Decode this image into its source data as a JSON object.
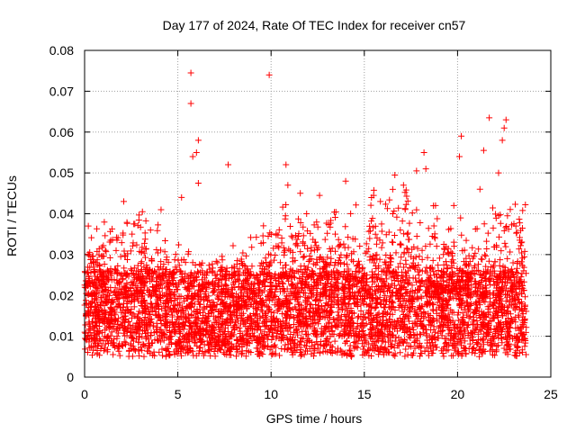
{
  "chart_data": {
    "type": "scatter",
    "title": "Day 177 of 2024, Rate Of TEC Index for receiver cn57",
    "xlabel": "GPS time / hours",
    "ylabel": "ROTI / TECUs",
    "xlim": [
      0,
      25
    ],
    "ylim": [
      0,
      0.08
    ],
    "xticks": [
      0,
      5,
      10,
      15,
      20,
      25
    ],
    "yticks": [
      0,
      0.01,
      0.02,
      0.03,
      0.04,
      0.05,
      0.06,
      0.07,
      0.08
    ],
    "ytick_labels": [
      "0",
      "0.01",
      "0.02",
      "0.03",
      "0.04",
      "0.05",
      "0.06",
      "0.07",
      "0.08"
    ],
    "grid": true,
    "marker": "+",
    "marker_color": "#ff0000",
    "x_range_of_points": [
      0,
      23.7
    ],
    "band_low": 0.005,
    "band_high": 0.026,
    "outliers": [
      {
        "x": 5.7,
        "y": 0.0745
      },
      {
        "x": 9.9,
        "y": 0.074
      },
      {
        "x": 5.7,
        "y": 0.067
      },
      {
        "x": 22.6,
        "y": 0.063
      },
      {
        "x": 21.7,
        "y": 0.0635
      },
      {
        "x": 22.5,
        "y": 0.061
      },
      {
        "x": 20.2,
        "y": 0.059
      },
      {
        "x": 6.1,
        "y": 0.058
      },
      {
        "x": 22.4,
        "y": 0.058
      },
      {
        "x": 6.0,
        "y": 0.055
      },
      {
        "x": 18.2,
        "y": 0.055
      },
      {
        "x": 5.8,
        "y": 0.054
      },
      {
        "x": 21.4,
        "y": 0.0555
      },
      {
        "x": 20.1,
        "y": 0.054
      },
      {
        "x": 10.8,
        "y": 0.052
      },
      {
        "x": 7.7,
        "y": 0.052
      },
      {
        "x": 18.3,
        "y": 0.051
      },
      {
        "x": 17.8,
        "y": 0.0505
      },
      {
        "x": 6.1,
        "y": 0.0475
      },
      {
        "x": 14.0,
        "y": 0.048
      },
      {
        "x": 22.2,
        "y": 0.05
      },
      {
        "x": 10.9,
        "y": 0.047
      },
      {
        "x": 15.5,
        "y": 0.0445
      },
      {
        "x": 12.6,
        "y": 0.0445
      },
      {
        "x": 21.2,
        "y": 0.046
      },
      {
        "x": 5.2,
        "y": 0.044
      },
      {
        "x": 2.1,
        "y": 0.043
      },
      {
        "x": 19.8,
        "y": 0.042
      },
      {
        "x": 4.1,
        "y": 0.041
      },
      {
        "x": 3.1,
        "y": 0.0405
      },
      {
        "x": 1.4,
        "y": 0.0335
      },
      {
        "x": 0.2,
        "y": 0.037
      }
    ]
  }
}
